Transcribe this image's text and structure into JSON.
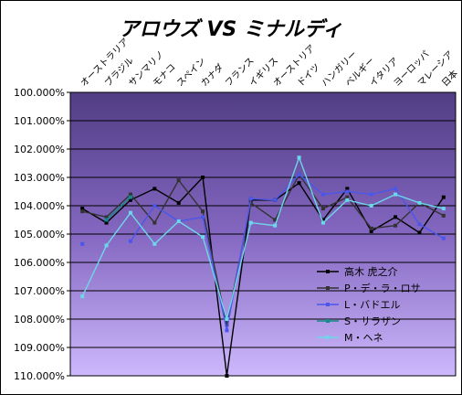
{
  "chart_data": {
    "type": "line",
    "title": "アロウズ VS ミナルディ",
    "xlabel": "",
    "ylabel": "",
    "categories": [
      "オーストラリア",
      "ブラジル",
      "サンマリノ",
      "モナコ",
      "スペイン",
      "カナダ",
      "フランス",
      "イギリス",
      "オーストリア",
      "ドイツ",
      "ハンガリー",
      "ベルギー",
      "イタリア",
      "ヨーロッパ",
      "マレーシア",
      "日本"
    ],
    "y_tick_labels": [
      "100.000%",
      "101.000%",
      "102.000%",
      "103.000%",
      "104.000%",
      "105.000%",
      "106.000%",
      "107.000%",
      "108.000%",
      "109.000%",
      "110.000%"
    ],
    "ylim": [
      100,
      110
    ],
    "y_inverted": true,
    "grid": "horizontal",
    "legend_position": "bottom-right",
    "series": [
      {
        "name": "高木 虎之介",
        "color": "#000000",
        "values": [
          104.1,
          104.6,
          103.8,
          103.4,
          103.9,
          103.0,
          110.0,
          103.8,
          103.8,
          103.2,
          104.5,
          103.4,
          104.9,
          104.4,
          104.95,
          103.7
        ]
      },
      {
        "name": "P・デ・ラ・ロサ",
        "color": "#333333",
        "values": [
          104.2,
          104.4,
          103.6,
          104.6,
          103.1,
          104.2,
          108.2,
          103.9,
          104.5,
          102.9,
          104.1,
          103.7,
          104.8,
          104.7,
          103.9,
          104.35
        ]
      },
      {
        "name": "L・バドエル",
        "color": "#4b57ea",
        "values": [
          105.35,
          null,
          105.25,
          104.0,
          104.55,
          104.4,
          108.4,
          103.75,
          103.8,
          102.9,
          103.6,
          103.5,
          103.6,
          103.4,
          104.65,
          105.15
        ]
      },
      {
        "name": "S・サラザン",
        "color": "#108a8a",
        "values": [
          null,
          104.5,
          103.7,
          null,
          null,
          null,
          null,
          null,
          null,
          null,
          null,
          null,
          null,
          null,
          null,
          null
        ]
      },
      {
        "name": "M・ヘネ",
        "color": "#6cd7ea",
        "values": [
          107.2,
          105.4,
          104.25,
          105.35,
          104.55,
          105.1,
          108.0,
          104.6,
          104.7,
          102.3,
          104.6,
          103.8,
          104.0,
          103.6,
          103.9,
          104.1
        ]
      }
    ]
  }
}
